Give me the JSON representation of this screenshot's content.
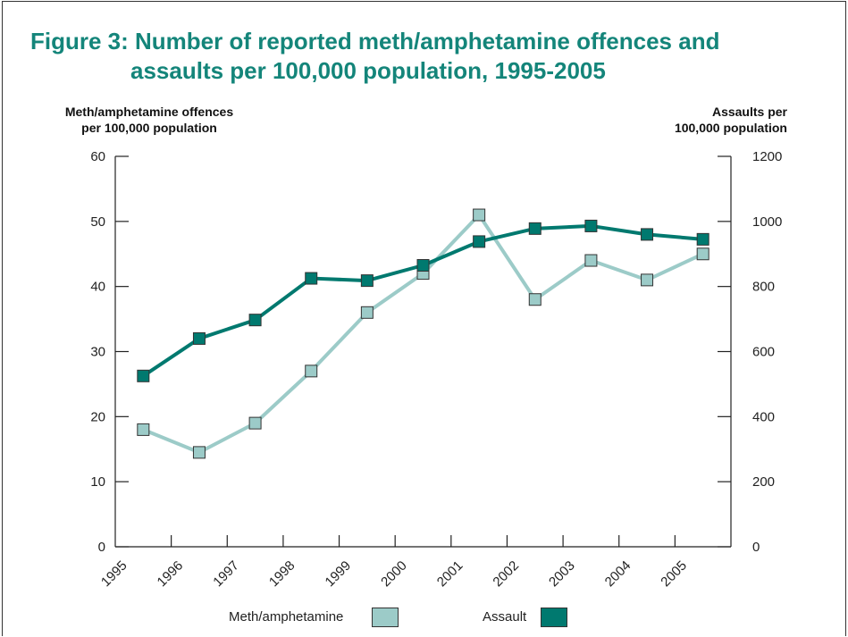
{
  "title_line1": "Figure 3: Number of reported meth/amphetamine offences and",
  "title_line2": "assaults per 100,000 population, 1995-2005",
  "chart_data": {
    "type": "line",
    "title": "Figure 3: Number of reported meth/amphetamine offences and assaults per 100,000 population, 1995-2005",
    "ylabel": "Meth/amphetamine offences\nper 100,000 population",
    "y2label": "Assaults per\n100,000 population",
    "x": [
      "1995",
      "1996",
      "1997",
      "1998",
      "1999",
      "2000",
      "2001",
      "2002",
      "2003",
      "2004",
      "2005"
    ],
    "ylim": [
      0,
      60
    ],
    "y2lim": [
      0,
      1200
    ],
    "yticks": [
      "0",
      "10",
      "20",
      "30",
      "40",
      "50",
      "60"
    ],
    "y2ticks": [
      "0",
      "200",
      "400",
      "600",
      "800",
      "1000",
      "1200"
    ],
    "series": [
      {
        "name": "Meth/amphetamine",
        "axis": "left",
        "color": "#9ccbc8",
        "values": [
          18,
          14.5,
          19,
          27,
          36,
          42,
          51,
          38,
          44,
          41,
          45
        ]
      },
      {
        "name": "Assault",
        "axis": "right",
        "color": "#00796f",
        "values": [
          525,
          640,
          697,
          825,
          818,
          865,
          938,
          978,
          986,
          960,
          945
        ]
      }
    ],
    "legend_position": "bottom"
  }
}
